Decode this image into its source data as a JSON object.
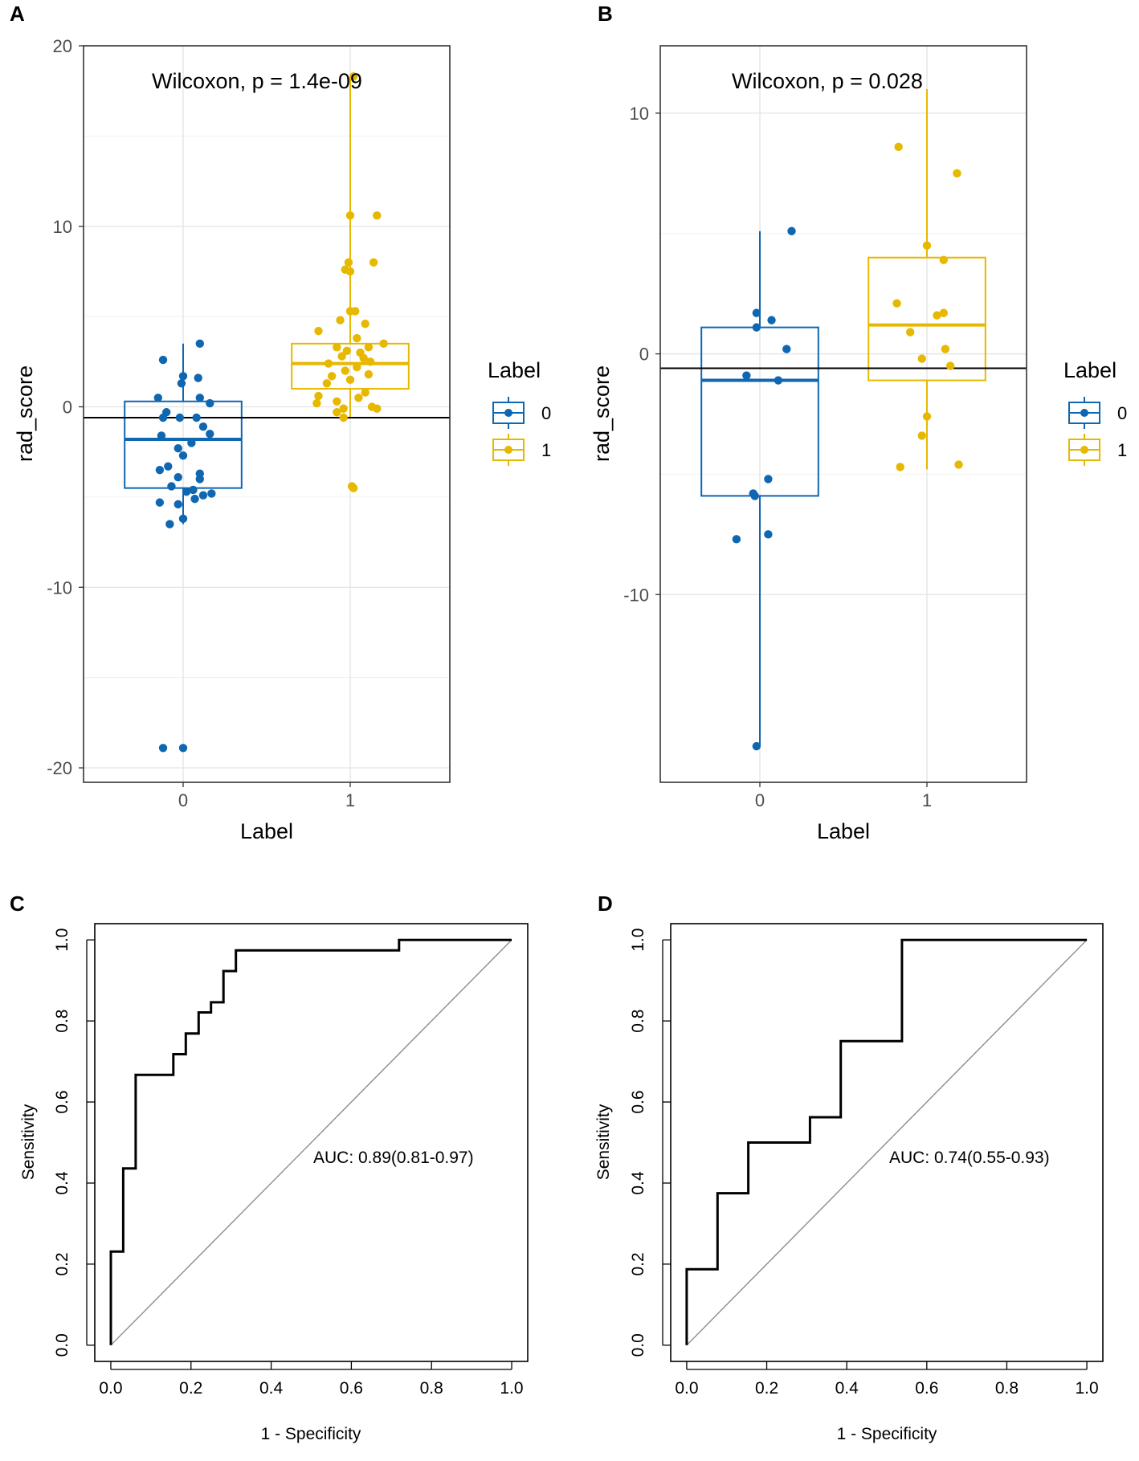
{
  "chart_data": [
    {
      "panel": "A",
      "type": "boxplot",
      "xlabel": "Label",
      "ylabel": "rad_score",
      "categories": [
        "0",
        "1"
      ],
      "ylim": [
        -20.8,
        20
      ],
      "yticks": [
        -20,
        -10,
        0,
        10,
        20
      ],
      "yticklabels": [
        "-20",
        "-10",
        "0",
        "10",
        "20"
      ],
      "annotation": "Wilcoxon, p = 1.4e-09",
      "cutoff": -0.6,
      "legend": {
        "title": "Label",
        "entries": [
          "0",
          "1"
        ],
        "position": "right"
      },
      "colors": {
        "0": "#0F67B1",
        "1": "#E7B800"
      },
      "series": [
        {
          "name": "0",
          "box": {
            "min": -6.5,
            "q1": -4.5,
            "median": -1.8,
            "q3": 0.3,
            "max": 3.5
          },
          "points": [
            {
              "x": 0.1,
              "y": 3.5
            },
            {
              "x": -0.12,
              "y": 2.6
            },
            {
              "x": 0.0,
              "y": 1.7
            },
            {
              "x": 0.09,
              "y": 1.6
            },
            {
              "x": -0.01,
              "y": 1.3
            },
            {
              "x": 0.16,
              "y": 0.2
            },
            {
              "x": -0.15,
              "y": 0.5
            },
            {
              "x": 0.1,
              "y": 0.5
            },
            {
              "x": -0.1,
              "y": -0.3
            },
            {
              "x": -0.02,
              "y": -0.6
            },
            {
              "x": -0.12,
              "y": -0.6
            },
            {
              "x": 0.08,
              "y": -0.6
            },
            {
              "x": 0.12,
              "y": -1.1
            },
            {
              "x": 0.16,
              "y": -1.5
            },
            {
              "x": -0.13,
              "y": -1.6
            },
            {
              "x": 0.05,
              "y": -2.0
            },
            {
              "x": -0.03,
              "y": -2.3
            },
            {
              "x": 0.0,
              "y": -2.7
            },
            {
              "x": -0.14,
              "y": -3.5
            },
            {
              "x": -0.09,
              "y": -3.3
            },
            {
              "x": 0.1,
              "y": -3.7
            },
            {
              "x": -0.03,
              "y": -3.9
            },
            {
              "x": 0.1,
              "y": -4.0
            },
            {
              "x": -0.07,
              "y": -4.4
            },
            {
              "x": 0.06,
              "y": -4.6
            },
            {
              "x": 0.02,
              "y": -4.7
            },
            {
              "x": 0.17,
              "y": -4.8
            },
            {
              "x": 0.12,
              "y": -4.9
            },
            {
              "x": 0.07,
              "y": -5.1
            },
            {
              "x": -0.14,
              "y": -5.3
            },
            {
              "x": -0.03,
              "y": -5.4
            },
            {
              "x": 0.0,
              "y": -6.2
            },
            {
              "x": -0.08,
              "y": -6.5
            },
            {
              "x": -0.12,
              "y": -18.9
            },
            {
              "x": 0.0,
              "y": -18.9
            }
          ]
        },
        {
          "name": "1",
          "box": {
            "min": -0.6,
            "q1": 1.0,
            "median": 2.4,
            "q3": 3.5,
            "max": 18.3
          },
          "points": [
            {
              "x": 0.02,
              "y": 18.3
            },
            {
              "x": 0.0,
              "y": 10.6
            },
            {
              "x": 0.16,
              "y": 10.6
            },
            {
              "x": -0.01,
              "y": 8.0
            },
            {
              "x": 0.14,
              "y": 8.0
            },
            {
              "x": -0.03,
              "y": 7.6
            },
            {
              "x": 0.0,
              "y": 7.5
            },
            {
              "x": 0.03,
              "y": 5.3
            },
            {
              "x": 0.0,
              "y": 5.3
            },
            {
              "x": -0.06,
              "y": 4.8
            },
            {
              "x": 0.09,
              "y": 4.6
            },
            {
              "x": -0.19,
              "y": 4.2
            },
            {
              "x": 0.04,
              "y": 3.8
            },
            {
              "x": 0.2,
              "y": 3.5
            },
            {
              "x": -0.08,
              "y": 3.3
            },
            {
              "x": 0.11,
              "y": 3.3
            },
            {
              "x": -0.02,
              "y": 3.1
            },
            {
              "x": 0.06,
              "y": 3.0
            },
            {
              "x": -0.05,
              "y": 2.8
            },
            {
              "x": 0.08,
              "y": 2.7
            },
            {
              "x": 0.12,
              "y": 2.5
            },
            {
              "x": -0.13,
              "y": 2.4
            },
            {
              "x": 0.04,
              "y": 2.2
            },
            {
              "x": -0.03,
              "y": 2.0
            },
            {
              "x": 0.11,
              "y": 1.8
            },
            {
              "x": -0.11,
              "y": 1.7
            },
            {
              "x": -0.14,
              "y": 1.3
            },
            {
              "x": 0.0,
              "y": 1.5
            },
            {
              "x": 0.09,
              "y": 0.8
            },
            {
              "x": -0.19,
              "y": 0.6
            },
            {
              "x": 0.05,
              "y": 0.5
            },
            {
              "x": -0.08,
              "y": 0.3
            },
            {
              "x": 0.13,
              "y": 0.0
            },
            {
              "x": -0.2,
              "y": 0.2
            },
            {
              "x": -0.04,
              "y": -0.1
            },
            {
              "x": 0.16,
              "y": -0.1
            },
            {
              "x": -0.08,
              "y": -0.3
            },
            {
              "x": -0.04,
              "y": -0.6
            },
            {
              "x": 0.01,
              "y": -4.4
            },
            {
              "x": 0.02,
              "y": -4.5
            }
          ]
        }
      ]
    },
    {
      "panel": "B",
      "type": "boxplot",
      "xlabel": "Label",
      "ylabel": "rad_score",
      "categories": [
        "0",
        "1"
      ],
      "ylim": [
        -17.8,
        12.8
      ],
      "yticks": [
        -10,
        0,
        10
      ],
      "yticklabels": [
        "-10",
        "0",
        "10"
      ],
      "annotation": "Wilcoxon, p = 0.028",
      "cutoff": -0.6,
      "legend": {
        "title": "Label",
        "entries": [
          "0",
          "1"
        ],
        "position": "right"
      },
      "colors": {
        "0": "#0F67B1",
        "1": "#E7B800"
      },
      "series": [
        {
          "name": "0",
          "box": {
            "min": -16.3,
            "q1": -5.9,
            "median": -1.1,
            "q3": 1.1,
            "max": 5.1
          },
          "points": [
            {
              "x": 0.19,
              "y": 5.1
            },
            {
              "x": -0.02,
              "y": 1.7
            },
            {
              "x": 0.07,
              "y": 1.4
            },
            {
              "x": -0.02,
              "y": 1.1
            },
            {
              "x": 0.16,
              "y": 0.2
            },
            {
              "x": -0.08,
              "y": -0.9
            },
            {
              "x": 0.11,
              "y": -1.1
            },
            {
              "x": 0.05,
              "y": -5.2
            },
            {
              "x": -0.04,
              "y": -5.8
            },
            {
              "x": -0.03,
              "y": -5.9
            },
            {
              "x": 0.05,
              "y": -7.5
            },
            {
              "x": -0.14,
              "y": -7.7
            },
            {
              "x": -0.02,
              "y": -16.3
            }
          ]
        },
        {
          "name": "1",
          "box": {
            "min": -4.8,
            "q1": -1.1,
            "median": 1.2,
            "q3": 4.0,
            "max": 11.0
          },
          "points": [
            {
              "x": -0.17,
              "y": 8.6
            },
            {
              "x": 0.18,
              "y": 7.5
            },
            {
              "x": 0.0,
              "y": 4.5
            },
            {
              "x": 0.1,
              "y": 3.9
            },
            {
              "x": -0.18,
              "y": 2.1
            },
            {
              "x": 0.1,
              "y": 1.7
            },
            {
              "x": 0.06,
              "y": 1.6
            },
            {
              "x": -0.1,
              "y": 0.9
            },
            {
              "x": 0.11,
              "y": 0.2
            },
            {
              "x": -0.03,
              "y": -0.2
            },
            {
              "x": 0.14,
              "y": -0.5
            },
            {
              "x": 0.0,
              "y": -2.6
            },
            {
              "x": -0.03,
              "y": -3.4
            },
            {
              "x": -0.16,
              "y": -4.7
            },
            {
              "x": 0.19,
              "y": -4.6
            }
          ]
        }
      ]
    },
    {
      "panel": "C",
      "type": "line",
      "xlabel": "1 - Specificity",
      "ylabel": "Sensitivity",
      "xlim": [
        -0.04,
        1.04
      ],
      "ylim": [
        -0.04,
        1.04
      ],
      "ticks": [
        0,
        0.2,
        0.4,
        0.6,
        0.8,
        1
      ],
      "ticklabels": [
        "0.0",
        "0.2",
        "0.4",
        "0.6",
        "0.8",
        "1.0"
      ],
      "annotation": "AUC: 0.89(0.81-0.97)",
      "diagonal": true,
      "series": [
        {
          "name": "ROC",
          "x": [
            0,
            0,
            0.031,
            0.031,
            0.062,
            0.062,
            0.156,
            0.156,
            0.187,
            0.187,
            0.219,
            0.219,
            0.25,
            0.25,
            0.281,
            0.281,
            0.312,
            0.312,
            0.719,
            0.719,
            1.0
          ],
          "y": [
            0,
            0.231,
            0.231,
            0.436,
            0.436,
            0.667,
            0.667,
            0.718,
            0.718,
            0.769,
            0.769,
            0.821,
            0.821,
            0.846,
            0.846,
            0.923,
            0.923,
            0.974,
            0.974,
            1.0,
            1.0
          ]
        }
      ]
    },
    {
      "panel": "D",
      "type": "line",
      "xlabel": "1 - Specificity",
      "ylabel": "Sensitivity",
      "xlim": [
        -0.04,
        1.04
      ],
      "ylim": [
        -0.04,
        1.04
      ],
      "ticks": [
        0,
        0.2,
        0.4,
        0.6,
        0.8,
        1
      ],
      "ticklabels": [
        "0.0",
        "0.2",
        "0.4",
        "0.6",
        "0.8",
        "1.0"
      ],
      "annotation": "AUC: 0.74(0.55-0.93)",
      "diagonal": true,
      "series": [
        {
          "name": "ROC",
          "x": [
            0,
            0,
            0.077,
            0.077,
            0.154,
            0.154,
            0.308,
            0.308,
            0.385,
            0.385,
            0.538,
            0.538,
            1.0
          ],
          "y": [
            0,
            0.1875,
            0.1875,
            0.375,
            0.375,
            0.5,
            0.5,
            0.5625,
            0.5625,
            0.75,
            0.75,
            1.0,
            1.0
          ]
        }
      ]
    }
  ]
}
